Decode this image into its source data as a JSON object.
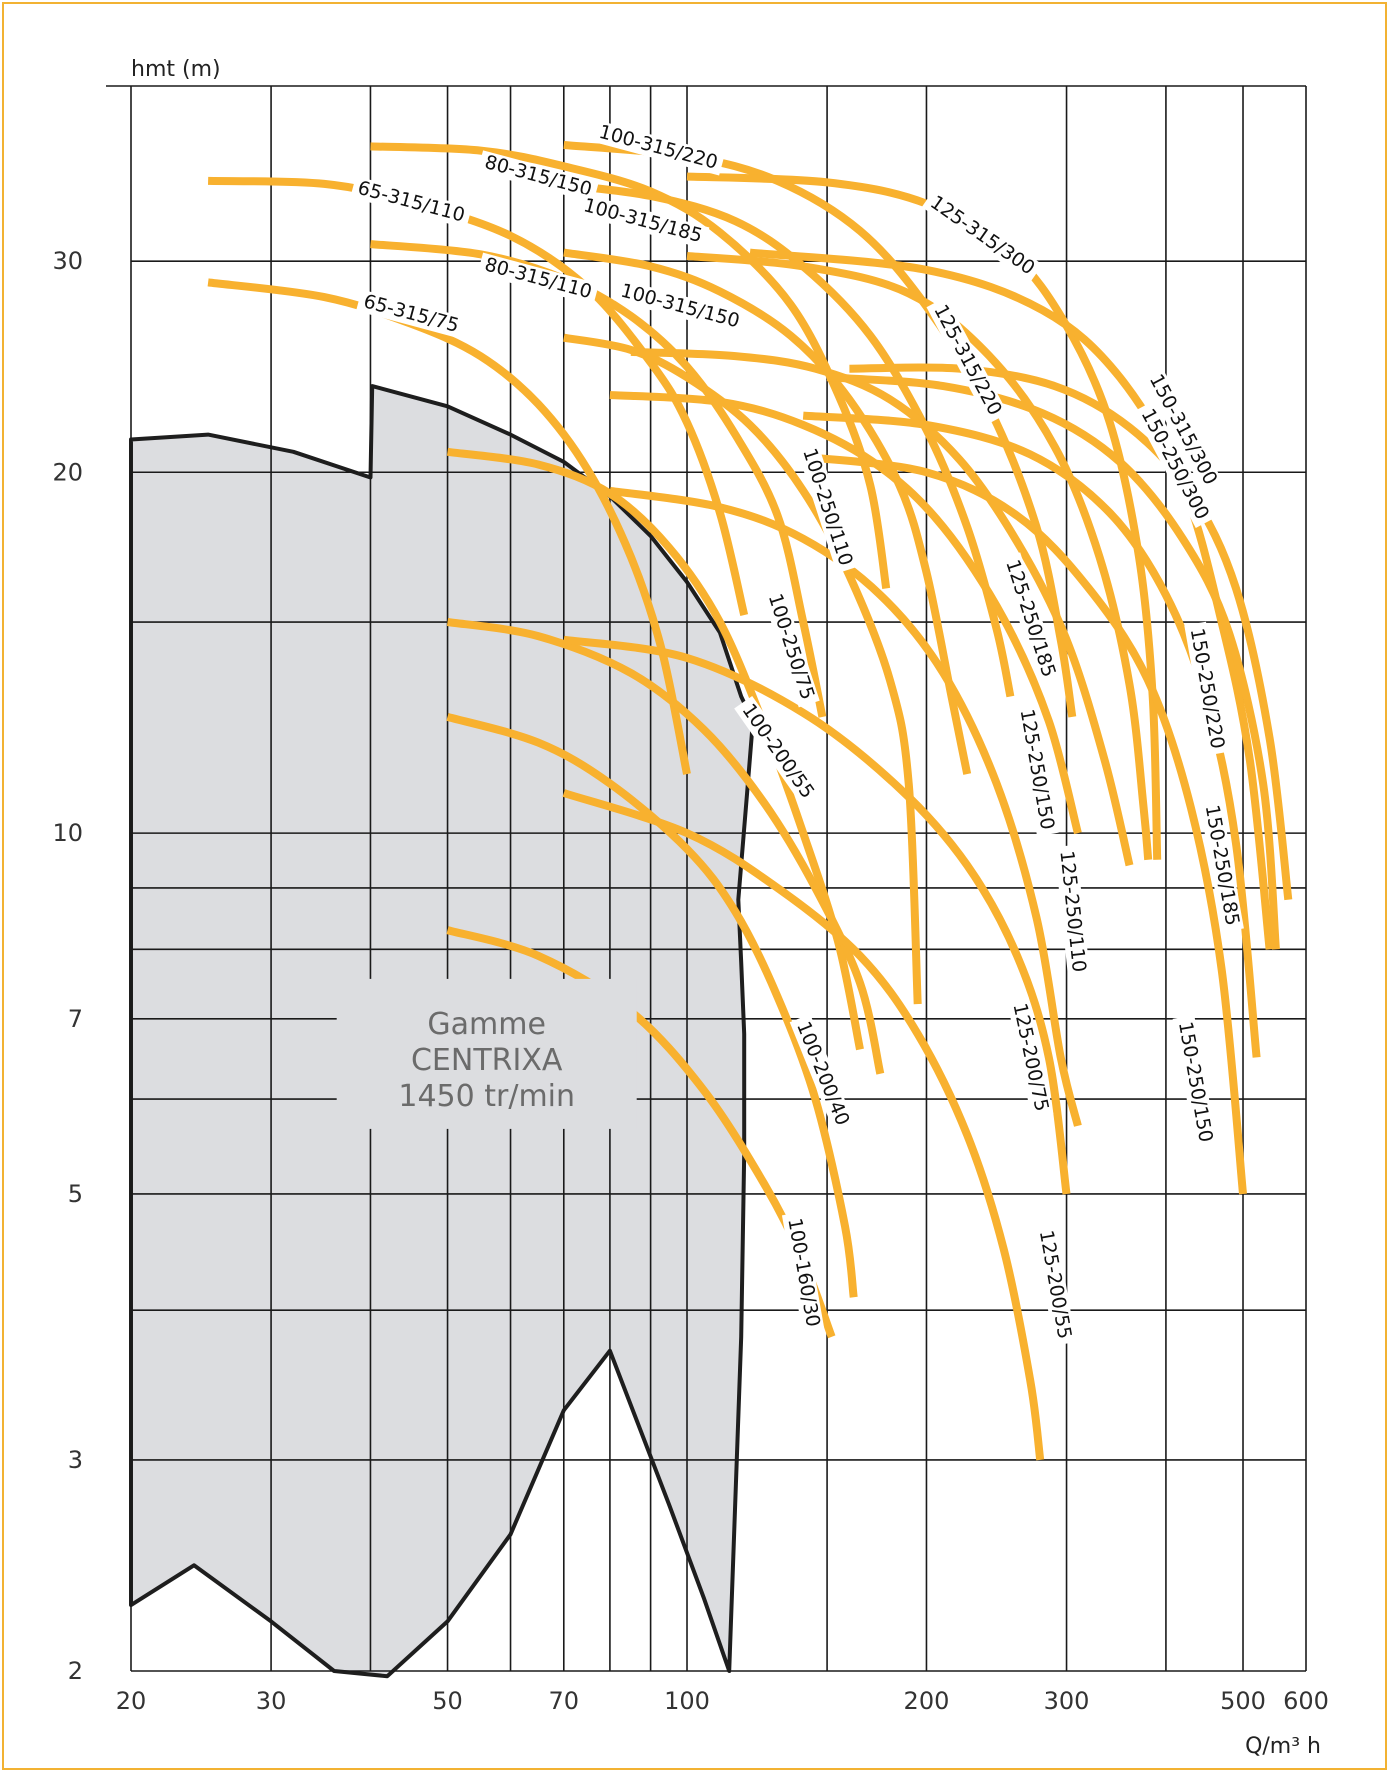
{
  "chart_data": {
    "type": "line",
    "title": "",
    "xlabel": "Q/m³ h",
    "ylabel": "hmt (m)",
    "x_scale": "log",
    "y_scale": "log",
    "xlim": [
      20,
      600
    ],
    "ylim": [
      2,
      42
    ],
    "x_ticks": [
      20,
      30,
      50,
      70,
      100,
      200,
      300,
      500,
      600
    ],
    "x_tick_labels": [
      "20",
      "30",
      "50",
      "70",
      "100",
      "200",
      "300",
      "500",
      "600"
    ],
    "x_minor_grid": [
      40,
      60,
      80,
      90,
      150,
      400
    ],
    "y_ticks": [
      2,
      3,
      5,
      7,
      10,
      20,
      30
    ],
    "y_tick_labels": [
      "2",
      "3",
      "5",
      "7",
      "10",
      "20",
      "30"
    ],
    "y_minor_grid": [
      4,
      6,
      8,
      9,
      15
    ],
    "grid": true,
    "colors": {
      "curve": "#f8b12f",
      "envelope_fill": "#dcdde0",
      "envelope_line": "#1e1e1e",
      "grid": "#1a1a1a",
      "frame": "#f2b233"
    },
    "range_label": [
      "Gamme",
      "CENTRIXA",
      "1450 tr/min"
    ],
    "envelope": [
      [
        20,
        21.3
      ],
      [
        25,
        21.5
      ],
      [
        32,
        20.8
      ],
      [
        40,
        19.8
      ],
      [
        40.2,
        23.6
      ],
      [
        50,
        22.7
      ],
      [
        60,
        21.5
      ],
      [
        70,
        20.4
      ],
      [
        80,
        19.1
      ],
      [
        90,
        17.7
      ],
      [
        100,
        16.2
      ],
      [
        110,
        14.7
      ],
      [
        117,
        13.0
      ],
      [
        121,
        12.4
      ],
      [
        119,
        10.8
      ],
      [
        116,
        8.8
      ],
      [
        117,
        7.8
      ],
      [
        118,
        6.8
      ],
      [
        118,
        5.4
      ],
      [
        117,
        3.8
      ],
      [
        113,
        2.0
      ],
      [
        105,
        2.3
      ],
      [
        95,
        2.75
      ],
      [
        80,
        3.7
      ],
      [
        70,
        3.3
      ],
      [
        60,
        2.6
      ],
      [
        50,
        2.2
      ],
      [
        42,
        1.98
      ],
      [
        36,
        2.0
      ],
      [
        30,
        2.2
      ],
      [
        24,
        2.45
      ],
      [
        20,
        2.27
      ]
    ],
    "series": [
      {
        "name": "65-315/75",
        "label": "65-315/75",
        "label_at": [
          45,
          27.1
        ],
        "label_angle": 15,
        "points": [
          [
            25,
            28.8
          ],
          [
            35,
            28.0
          ],
          [
            45,
            26.6
          ],
          [
            55,
            25.0
          ],
          [
            65,
            22.8
          ],
          [
            75,
            20.1
          ],
          [
            85,
            17.0
          ],
          [
            93,
            14.2
          ],
          [
            100,
            11.2
          ]
        ]
      },
      {
        "name": "65-315/110",
        "label": "65-315/110",
        "label_at": [
          45,
          33.6
        ],
        "label_angle": 15,
        "points": [
          [
            25,
            35.0
          ],
          [
            35,
            34.8
          ],
          [
            45,
            33.6
          ],
          [
            60,
            31.5
          ],
          [
            75,
            28.5
          ],
          [
            90,
            24.7
          ],
          [
            100,
            22.0
          ],
          [
            110,
            18.5
          ],
          [
            118,
            15.2
          ]
        ]
      },
      {
        "name": "80-315/110",
        "label": "80-315/110",
        "label_at": [
          65,
          29.0
        ],
        "label_angle": 15,
        "points": [
          [
            40,
            31.0
          ],
          [
            55,
            30.4
          ],
          [
            70,
            29.0
          ],
          [
            85,
            27.0
          ],
          [
            100,
            24.5
          ],
          [
            115,
            21.5
          ],
          [
            130,
            18.4
          ],
          [
            140,
            15.0
          ],
          [
            148,
            12.5
          ]
        ]
      },
      {
        "name": "80-315/150",
        "label": "80-315/150",
        "label_at": [
          65,
          35.3
        ],
        "label_angle": 15,
        "points": [
          [
            40,
            37.4
          ],
          [
            55,
            37.1
          ],
          [
            70,
            36.0
          ],
          [
            90,
            34.3
          ],
          [
            110,
            31.7
          ],
          [
            135,
            27.6
          ],
          [
            155,
            23.2
          ],
          [
            170,
            19.5
          ],
          [
            178,
            16.0
          ]
        ]
      },
      {
        "name": "100-315/150",
        "label": "100-315/150",
        "label_at": [
          98,
          27.5
        ],
        "label_angle": 15,
        "points": [
          [
            70,
            30.5
          ],
          [
            90,
            29.7
          ],
          [
            110,
            28.3
          ],
          [
            135,
            26.0
          ],
          [
            160,
            23.0
          ],
          [
            185,
            19.5
          ],
          [
            200,
            16.5
          ],
          [
            215,
            13.0
          ],
          [
            225,
            11.2
          ]
        ]
      },
      {
        "name": "100-315/185",
        "label": "100-315/185",
        "label_at": [
          88,
          32.4
        ],
        "label_angle": 15,
        "points": [
          [
            68,
            34.8
          ],
          [
            90,
            34.0
          ],
          [
            115,
            32.4
          ],
          [
            140,
            29.7
          ],
          [
            170,
            26.0
          ],
          [
            200,
            21.7
          ],
          [
            225,
            18.0
          ],
          [
            245,
            14.8
          ],
          [
            255,
            13.0
          ]
        ]
      },
      {
        "name": "100-315/220",
        "label": "100-315/220",
        "label_at": [
          92,
          37.3
        ],
        "label_angle": 15,
        "points": [
          [
            70,
            37.5
          ],
          [
            100,
            36.7
          ],
          [
            130,
            35.0
          ],
          [
            165,
            31.8
          ],
          [
            200,
            27.5
          ],
          [
            240,
            22.6
          ],
          [
            275,
            18.0
          ],
          [
            295,
            14.5
          ],
          [
            305,
            12.5
          ]
        ]
      },
      {
        "name": "125-315/220",
        "label": "125-315/220",
        "label_at": [
          225,
          24.8
        ],
        "label_angle": 62,
        "points": [
          [
            100,
            30.3
          ],
          [
            140,
            29.7
          ],
          [
            190,
            28.2
          ],
          [
            240,
            25.0
          ],
          [
            290,
            21.0
          ],
          [
            330,
            17.0
          ],
          [
            360,
            13.3
          ],
          [
            375,
            10.5
          ],
          [
            380,
            9.5
          ]
        ]
      },
      {
        "name": "125-315/300",
        "label": "125-315/300",
        "label_at": [
          235,
          31.5
        ],
        "label_angle": 35,
        "points": [
          [
            100,
            35.3
          ],
          [
            150,
            34.9
          ],
          [
            200,
            33.5
          ],
          [
            255,
            30.5
          ],
          [
            300,
            26.5
          ],
          [
            340,
            22.0
          ],
          [
            370,
            17.0
          ],
          [
            385,
            13.0
          ],
          [
            390,
            9.5
          ]
        ]
      },
      {
        "name": "150-315/300",
        "label": "150-315/300",
        "label_at": [
          420,
          21.7
        ],
        "label_angle": 62,
        "points": [
          [
            120,
            30.5
          ],
          [
            200,
            29.5
          ],
          [
            280,
            27.3
          ],
          [
            350,
            24.0
          ],
          [
            420,
            19.5
          ],
          [
            470,
            15.0
          ],
          [
            510,
            11.5
          ],
          [
            540,
            8.0
          ]
        ]
      },
      {
        "name": "100-250/75",
        "label": "100-250/75",
        "label_at": [
          135,
          14.3
        ],
        "label_angle": 72,
        "points": [
          [
            50,
            20.8
          ],
          [
            65,
            20.3
          ],
          [
            80,
            19.2
          ],
          [
            95,
            17.3
          ],
          [
            110,
            15.0
          ],
          [
            125,
            12.3
          ],
          [
            140,
            10.0
          ],
          [
            155,
            8.1
          ],
          [
            165,
            6.6
          ]
        ]
      },
      {
        "name": "100-250/110",
        "label": "100-250/110",
        "label_at": [
          150,
          18.7
        ],
        "label_angle": 72,
        "points": [
          [
            70,
            25.9
          ],
          [
            85,
            25.3
          ],
          [
            100,
            24.0
          ],
          [
            120,
            21.9
          ],
          [
            140,
            19.3
          ],
          [
            160,
            16.4
          ],
          [
            180,
            13.4
          ],
          [
            190,
            11.0
          ],
          [
            195,
            7.2
          ]
        ]
      },
      {
        "name": "125-250/110",
        "label": "125-250/110",
        "label_at": [
          305,
          8.6
        ],
        "label_angle": 84,
        "points": [
          [
            80,
            19.3
          ],
          [
            110,
            18.7
          ],
          [
            140,
            17.6
          ],
          [
            175,
            15.8
          ],
          [
            210,
            13.6
          ],
          [
            245,
            11.0
          ],
          [
            275,
            8.5
          ],
          [
            295,
            6.5
          ],
          [
            310,
            5.7
          ]
        ]
      },
      {
        "name": "125-250/150",
        "label": "125-250/150",
        "label_at": [
          275,
          11.3
        ],
        "label_angle": 80,
        "points": [
          [
            80,
            23.2
          ],
          [
            110,
            22.9
          ],
          [
            140,
            21.9
          ],
          [
            175,
            20.2
          ],
          [
            210,
            18.0
          ],
          [
            250,
            15.1
          ],
          [
            285,
            12.4
          ],
          [
            310,
            10.0
          ]
        ]
      },
      {
        "name": "125-250/185",
        "label": "125-250/185",
        "label_at": [
          270,
          15.1
        ],
        "label_angle": 72,
        "points": [
          [
            85,
            25.2
          ],
          [
            115,
            25.0
          ],
          [
            145,
            24.4
          ],
          [
            180,
            23.0
          ],
          [
            220,
            20.5
          ],
          [
            260,
            17.5
          ],
          [
            300,
            14.5
          ],
          [
            335,
            11.5
          ],
          [
            360,
            9.4
          ]
        ]
      },
      {
        "name": "150-250/150",
        "label": "150-250/150",
        "label_at": [
          435,
          6.2
        ],
        "label_angle": 80,
        "points": [
          [
            140,
            20.6
          ],
          [
            200,
            20.0
          ],
          [
            260,
            18.4
          ],
          [
            320,
            16.0
          ],
          [
            380,
            13.4
          ],
          [
            430,
            10.5
          ],
          [
            470,
            7.7
          ],
          [
            500,
            5.0
          ]
        ]
      },
      {
        "name": "150-250/185",
        "label": "150-250/185",
        "label_at": [
          470,
          9.4
        ],
        "label_angle": 80,
        "points": [
          [
            140,
            22.3
          ],
          [
            200,
            21.9
          ],
          [
            270,
            20.7
          ],
          [
            340,
            18.5
          ],
          [
            400,
            15.8
          ],
          [
            450,
            12.9
          ],
          [
            490,
            9.8
          ],
          [
            520,
            6.5
          ]
        ]
      },
      {
        "name": "150-250/220",
        "label": "150-250/220",
        "label_at": [
          450,
          13.2
        ],
        "label_angle": 80,
        "points": [
          [
            150,
            24.0
          ],
          [
            210,
            23.6
          ],
          [
            280,
            22.4
          ],
          [
            350,
            20.4
          ],
          [
            420,
            17.6
          ],
          [
            480,
            14.7
          ],
          [
            530,
            11.0
          ],
          [
            550,
            8.0
          ]
        ]
      },
      {
        "name": "150-250/300",
        "label": "150-250/300",
        "label_at": [
          410,
          20.3
        ],
        "label_angle": 62,
        "points": [
          [
            160,
            24.4
          ],
          [
            220,
            24.4
          ],
          [
            290,
            23.6
          ],
          [
            360,
            21.8
          ],
          [
            430,
            19.2
          ],
          [
            490,
            16.0
          ],
          [
            540,
            12.0
          ],
          [
            570,
            8.8
          ]
        ]
      },
      {
        "name": "100-200/55",
        "label": "100-200/55",
        "label_at": [
          130,
          11.7
        ],
        "label_angle": 55,
        "points": [
          [
            50,
            15.0
          ],
          [
            65,
            14.6
          ],
          [
            85,
            13.6
          ],
          [
            105,
            12.2
          ],
          [
            125,
            10.6
          ],
          [
            145,
            9.0
          ],
          [
            165,
            7.5
          ],
          [
            175,
            6.3
          ]
        ]
      },
      {
        "name": "100-200/40",
        "label": "100-200/40",
        "label_at": [
          148,
          6.3
        ],
        "label_angle": 68,
        "points": [
          [
            50,
            12.5
          ],
          [
            65,
            11.9
          ],
          [
            80,
            11.0
          ],
          [
            100,
            9.7
          ],
          [
            115,
            8.6
          ],
          [
            130,
            7.3
          ],
          [
            145,
            6.0
          ],
          [
            158,
            4.7
          ],
          [
            162,
            4.1
          ]
        ]
      },
      {
        "name": "100-160/30",
        "label": "100-160/30",
        "label_at": [
          140,
          4.3
        ],
        "label_angle": 80,
        "points": [
          [
            50,
            8.3
          ],
          [
            65,
            7.9
          ],
          [
            85,
            7.1
          ],
          [
            105,
            6.1
          ],
          [
            125,
            5.1
          ],
          [
            140,
            4.4
          ],
          [
            152,
            3.8
          ]
        ]
      },
      {
        "name": "125-200/75",
        "label": "125-200/75",
        "label_at": [
          270,
          6.5
        ],
        "label_angle": 78,
        "points": [
          [
            70,
            14.5
          ],
          [
            100,
            14.0
          ],
          [
            140,
            12.6
          ],
          [
            185,
            10.9
          ],
          [
            225,
            9.4
          ],
          [
            260,
            7.9
          ],
          [
            285,
            6.5
          ],
          [
            300,
            5.0
          ]
        ]
      },
      {
        "name": "125-200/55",
        "label": "125-200/55",
        "label_at": [
          290,
          4.2
        ],
        "label_angle": 80,
        "points": [
          [
            70,
            10.8
          ],
          [
            100,
            10.0
          ],
          [
            130,
            9.0
          ],
          [
            165,
            7.9
          ],
          [
            195,
            6.8
          ],
          [
            225,
            5.6
          ],
          [
            250,
            4.5
          ],
          [
            270,
            3.5
          ],
          [
            278,
            3.0
          ]
        ]
      }
    ]
  }
}
